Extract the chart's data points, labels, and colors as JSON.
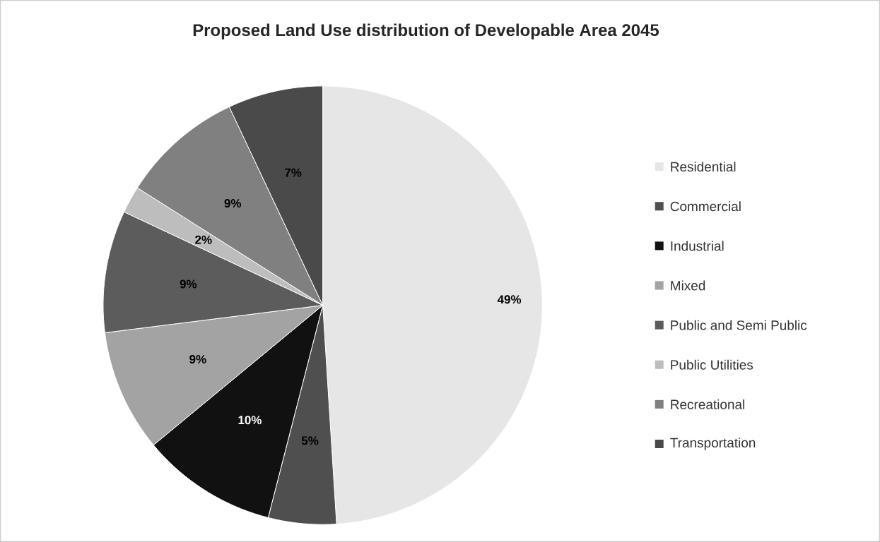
{
  "chart_data": {
    "type": "pie",
    "title": "Proposed Land Use distribution of Developable Area 2045",
    "categories": [
      "Residential",
      "Commercial",
      "Industrial",
      "Mixed",
      "Public and Semi Public",
      "Public Utilities",
      "Recreational",
      "Transportation"
    ],
    "values": [
      49,
      5,
      10,
      9,
      9,
      2,
      9,
      7
    ],
    "value_labels": [
      "49%",
      "5%",
      "10%",
      "9%",
      "9%",
      "2%",
      "9%",
      "7%"
    ],
    "colors": [
      "#e6e6e6",
      "#4f4f4f",
      "#111111",
      "#a3a3a3",
      "#5c5c5c",
      "#bdbdbd",
      "#808080",
      "#4a4a4a"
    ],
    "legend": "right"
  }
}
